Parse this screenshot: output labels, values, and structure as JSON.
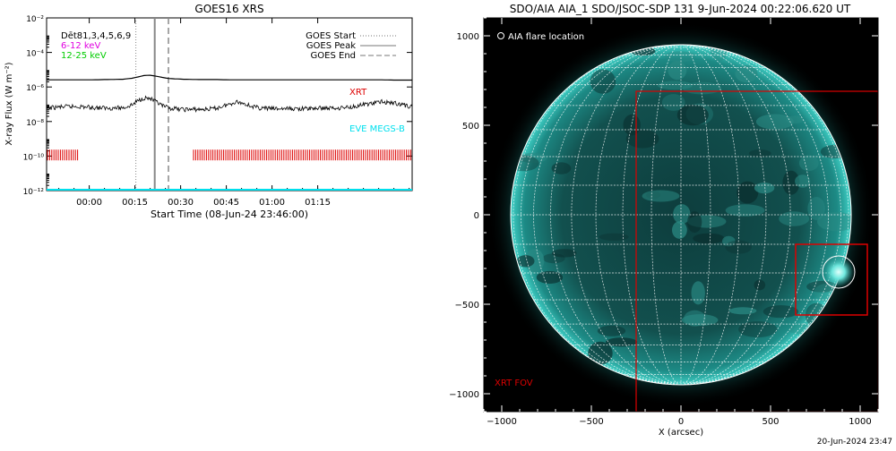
{
  "goes_panel": {
    "title": "GOES16 XRS",
    "ylabel": "X-ray Flux (W m⁻²)",
    "xlabel": "Start Time (08-Jun-24 23:46:00)",
    "legend_left": [
      {
        "text": "Dēt81,3,4,5,6,9",
        "color": "#000000"
      },
      {
        "text": "6-12 keV",
        "color": "#e000e0"
      },
      {
        "text": "12-25 keV",
        "color": "#00cc00"
      }
    ],
    "legend_right": [
      {
        "text": "GOES Start",
        "dash": "dotted"
      },
      {
        "text": "GOES Peak",
        "dash": "solid"
      },
      {
        "text": "GOES End",
        "dash": "dashed"
      }
    ],
    "xrt_label": "XRT",
    "eve_label": "EVE MEGS-B",
    "colors": {
      "xrt": "#dd0000",
      "eve": "#00e0ee",
      "marker": "#888888"
    }
  },
  "aia_panel": {
    "title": "SDO/AIA AIA_1 SDO/JSOC-SDP 131  9-Jun-2024 00:22:06.620 UT",
    "legend": "AIA flare location",
    "xlabel": "X (arcsec)",
    "fov_label": "XRT FOV",
    "fov_color": "#dd0000",
    "disk_color": "#1a8f8a"
  },
  "footer_date": "20-Jun-2024 23:47",
  "chart_data": [
    {
      "type": "line",
      "title": "GOES16 XRS",
      "xlabel": "Start Time (08-Jun-24 23:46:00)",
      "ylabel": "X-ray Flux (W m⁻²)",
      "y_scale": "log",
      "xlim_minutes_from_start": [
        0,
        120
      ],
      "ylim": [
        1e-12,
        0.01
      ],
      "x_ticks": [
        {
          "minutes": 14,
          "label": "00:00"
        },
        {
          "minutes": 29,
          "label": "00:15"
        },
        {
          "minutes": 44,
          "label": "00:30"
        },
        {
          "minutes": 59,
          "label": "00:45"
        },
        {
          "minutes": 74,
          "label": "01:00"
        },
        {
          "minutes": 89,
          "label": "01:15"
        }
      ],
      "y_ticks": [
        {
          "value": 1e-12,
          "label": "10⁻¹²"
        },
        {
          "value": 1e-10,
          "label": "10⁻¹⁰"
        },
        {
          "value": 1e-08,
          "label": "10⁻⁸"
        },
        {
          "value": 1e-06,
          "label": "10⁻⁶"
        },
        {
          "value": 0.0001,
          "label": "10⁻⁴"
        },
        {
          "value": 0.01,
          "label": "10⁻²"
        }
      ],
      "event_lines_minutes": {
        "start": 29.3,
        "peak": 35.5,
        "end": 40
      },
      "series": [
        {
          "x": [
            0,
            5,
            10,
            15,
            20,
            25,
            28,
            30,
            32,
            34,
            36,
            38,
            40,
            45,
            50,
            55,
            60,
            65,
            70,
            75,
            80,
            85,
            90,
            95,
            100,
            105,
            110,
            115,
            120
          ],
          "values": [
            2.6e-06,
            2.6e-06,
            2.6e-06,
            2.6e-06,
            2.7e-06,
            2.8e-06,
            3.2e-06,
            3.8e-06,
            4.6e-06,
            4.8e-06,
            4.2e-06,
            3.6e-06,
            3.1e-06,
            2.8e-06,
            2.7e-06,
            2.7e-06,
            2.6e-06,
            2.6e-06,
            2.6e-06,
            2.6e-06,
            2.6e-06,
            2.6e-06,
            2.6e-06,
            2.6e-06,
            2.6e-06,
            2.6e-06,
            2.6e-06,
            2.5e-06,
            2.5e-06
          ]
        },
        {
          "x": [
            0,
            5,
            10,
            15,
            20,
            25,
            28,
            30,
            32,
            34,
            36,
            38,
            40,
            42,
            45,
            50,
            55,
            60,
            62,
            65,
            68,
            70,
            75,
            80,
            85,
            90,
            95,
            100,
            105,
            110,
            115,
            120
          ],
          "values": [
            6e-08,
            7e-08,
            7.5e-08,
            6.5e-08,
            6e-08,
            6.2e-08,
            9e-08,
            1.6e-07,
            2.4e-07,
            2.1e-07,
            1.3e-07,
            8e-08,
            6e-08,
            5.5e-08,
            5e-08,
            5e-08,
            5.5e-08,
            1e-07,
            1.4e-07,
            1.1e-07,
            7e-08,
            6e-08,
            5.5e-08,
            5.5e-08,
            5.5e-08,
            6e-08,
            6e-08,
            7e-08,
            1e-07,
            1.4e-07,
            1.1e-07,
            7e-08
          ]
        }
      ]
    },
    {
      "type": "scatter",
      "title": "SDO/AIA AIA_1 SDO/JSOC-SDP 131  9-Jun-2024 00:22:06.620 UT",
      "xlabel": "X (arcsec)",
      "xlim": [
        -1100,
        1100
      ],
      "ylim": [
        -1100,
        1100
      ],
      "x_ticks": [
        -1000,
        -500,
        0,
        500,
        1000
      ],
      "y_ticks": [
        -1000,
        -500,
        0,
        500,
        1000
      ],
      "solar_radius_arcsec": 950,
      "xrt_fov": {
        "x": [
          -250,
          1100
        ],
        "y": [
          -1100,
          690
        ]
      },
      "zoom_box": {
        "x": [
          640,
          1040
        ],
        "y": [
          -560,
          -165
        ]
      },
      "flare_location": {
        "x": 880,
        "y": -320
      }
    }
  ]
}
